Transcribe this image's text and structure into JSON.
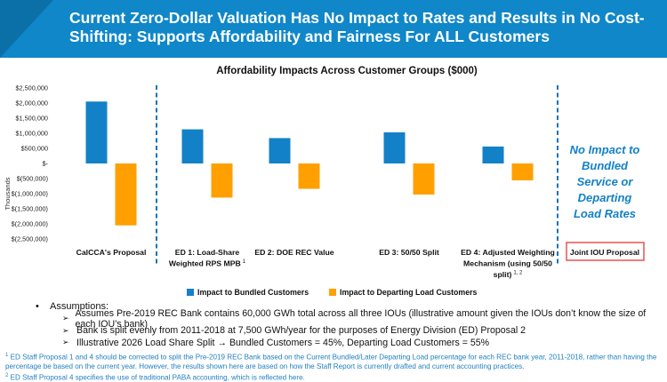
{
  "header": {
    "title": "Current Zero-Dollar Valuation Has No Impact to Rates and Results in No Cost-Shifting: Supports Affordability and Fairness For ALL Customers"
  },
  "chart_data": {
    "type": "bar",
    "title": "Affordability Impacts Across Customer Groups ($000)",
    "ylabel": "Thousands",
    "xlabel": "",
    "ylim": [
      -2500000,
      2500000
    ],
    "yticks": [
      2500000,
      2000000,
      1500000,
      1000000,
      500000,
      0,
      -500000,
      -1000000,
      -1500000,
      -2000000,
      -2500000
    ],
    "ytick_labels": [
      "$2,500,000",
      "$2,000,000",
      "$1,500,000",
      "$1,000,000",
      "$500,000",
      "$-",
      "$(500,000)",
      "$(1,000,000)",
      "$(1,500,000)",
      "$(2,000,000)",
      "$(2,500,000)"
    ],
    "categories": [
      {
        "lines": [
          "CalCCA's Proposal"
        ],
        "sup": ""
      },
      {
        "lines": [
          "ED 1: Load-Share",
          "Weighted RPS MPB"
        ],
        "sup": "1"
      },
      {
        "lines": [
          "ED 2: DOE REC Value"
        ],
        "sup": ""
      },
      {
        "lines": [
          "ED 3: 50/50 Split"
        ],
        "sup": ""
      },
      {
        "lines": [
          "ED 4: Adjusted Weighting",
          "Mechanism (using 50/50",
          "split)"
        ],
        "sup": "1, 2"
      },
      {
        "lines": [
          "Joint IOU Proposal"
        ],
        "sup": ""
      }
    ],
    "series": [
      {
        "name": "Impact to Bundled Customers",
        "color": "#1381C7",
        "values": [
          2050000,
          1130000,
          840000,
          1030000,
          560000,
          null
        ]
      },
      {
        "name": "Impact to Departing Load Customers",
        "color": "#FFA000",
        "values": [
          -2050000,
          -1130000,
          -840000,
          -1030000,
          -560000,
          null
        ]
      }
    ],
    "annotation": {
      "lines": [
        "No Impact to",
        "Bundled",
        "Service or",
        "Departing",
        "Load Rates"
      ],
      "color": "#1381C7"
    },
    "highlight_category": "Joint IOU Proposal",
    "highlight_color": "#E53935",
    "legend_position": "bottom"
  },
  "assumptions": {
    "heading": "Assumptions:",
    "items": [
      "Assumes Pre-2019 REC Bank contains 60,000 GWh total across all three IOUs (illustrative amount given the IOUs don’t know the size of each IOU’s bank)",
      "Bank is split evenly from 2011-2018 at 7,500 GWh/year for the purposes of Energy Division (ED) Proposal 2",
      "Illustrative 2026 Load Share Split → Bundled Customers = 45%, Departing Load Customers = 55%"
    ]
  },
  "footnotes": [
    {
      "mark": "1",
      "text": "ED Staff Proposal 1 and 4 should be corrected to split the Pre-2019 REC Bank based on the Current Bundled/Later Departing Load percentage for each REC bank year,  2011-2018, rather than having the percentage be based on the current year.  However, the results shown here are based on how the Staff Report is currently drafted and current accounting practices."
    },
    {
      "mark": "2",
      "text": "ED Staff Proposal 4 specifies the use of traditional PABA accounting, which is reflected here."
    }
  ]
}
